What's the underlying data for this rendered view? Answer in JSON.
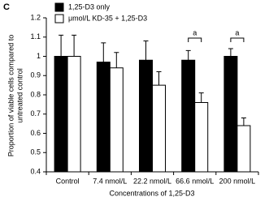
{
  "chart_data": {
    "type": "bar",
    "panel_label": "C",
    "y_label": [
      "Proportion of viable cells compared to",
      "untreated control"
    ],
    "x_label": "Concentrations of 1,25-D3",
    "categories": [
      "Control",
      "7.4 nmol/L",
      "22.2 nmol/L",
      "66.6 nmol/L",
      "200 nmol/L"
    ],
    "series": [
      {
        "name": "1,25-D3 only",
        "color": "#000000",
        "values": [
          1.0,
          0.97,
          0.98,
          0.98,
          1.0
        ],
        "errors": [
          0.11,
          0.1,
          0.1,
          0.05,
          0.04
        ]
      },
      {
        "name": "μmol/L KD-35 + 1,25-D3",
        "color": "#ffffff",
        "values": [
          1.0,
          0.94,
          0.85,
          0.76,
          0.64
        ],
        "errors": [
          0.11,
          0.08,
          0.07,
          0.05,
          0.04
        ]
      }
    ],
    "significance": [
      null,
      null,
      null,
      "a",
      "a"
    ],
    "ylim": [
      0.4,
      1.2
    ],
    "yticks": [
      0.4,
      0.5,
      0.6,
      0.7,
      0.8,
      0.9,
      1,
      1.1,
      1.2
    ],
    "grid": false
  }
}
